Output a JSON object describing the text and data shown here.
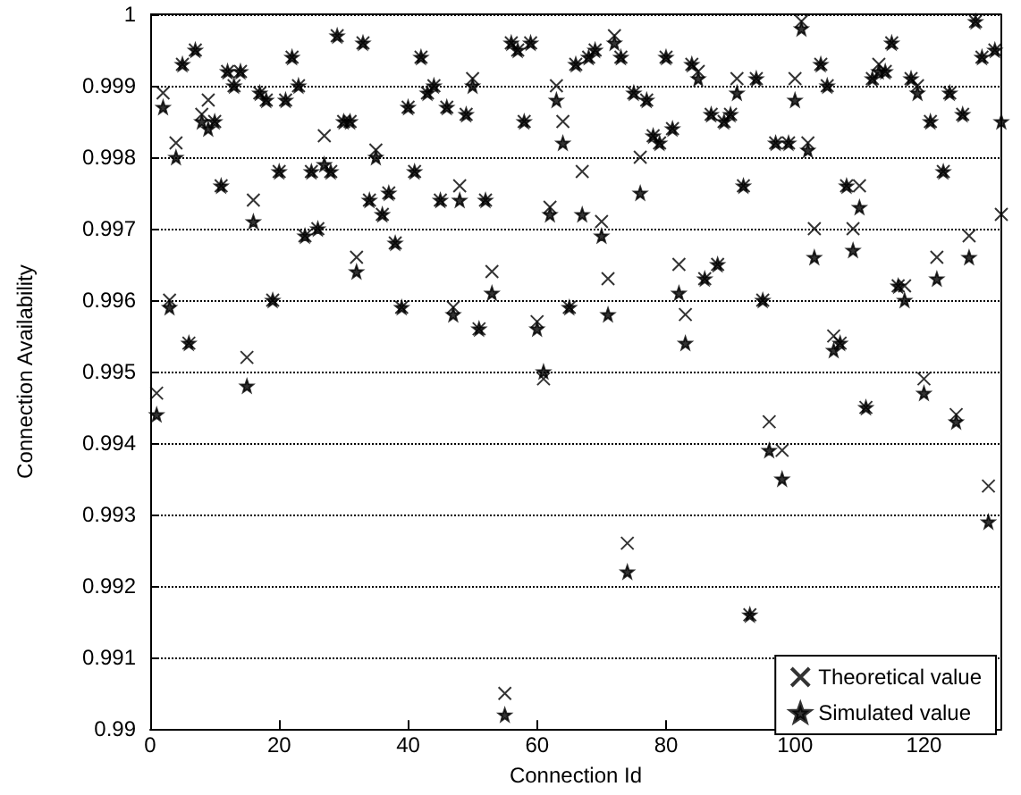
{
  "chart_data": {
    "type": "scatter",
    "xlabel": "Connection Id",
    "ylabel": "Connection Availability",
    "xlim": [
      0,
      132
    ],
    "xticks": [
      0,
      20,
      40,
      60,
      80,
      100,
      120
    ],
    "ylim": [
      0.99,
      1
    ],
    "yticks": [
      0.99,
      0.991,
      0.992,
      0.993,
      0.994,
      0.995,
      0.996,
      0.997,
      0.998,
      0.999,
      1
    ],
    "grid": "y",
    "legend": "bottom right",
    "series": [
      {
        "name": "Theoretical value",
        "color": "#000000",
        "marker": "cross",
        "x": [
          1,
          2,
          3,
          4,
          5,
          6,
          7,
          8,
          9,
          10,
          11,
          12,
          13,
          14,
          15,
          16,
          17,
          18,
          19,
          20,
          21,
          22,
          23,
          24,
          25,
          26,
          27,
          28,
          29,
          30,
          31,
          32,
          33,
          34,
          35,
          36,
          37,
          38,
          39,
          40,
          41,
          42,
          43,
          44,
          45,
          46,
          47,
          48,
          49,
          50,
          51,
          52,
          53,
          55,
          56,
          57,
          58,
          59,
          60,
          61,
          62,
          63,
          64,
          65,
          66,
          67,
          68,
          69,
          70,
          71,
          72,
          73,
          74,
          75,
          76,
          77,
          78,
          79,
          80,
          81,
          82,
          83,
          84,
          85,
          86,
          87,
          88,
          89,
          90,
          91,
          92,
          93,
          94,
          95,
          96,
          97,
          98,
          99,
          100,
          101,
          102,
          103,
          104,
          105,
          106,
          107,
          108,
          109,
          110,
          111,
          112,
          113,
          114,
          115,
          116,
          117,
          118,
          119,
          120,
          121,
          122,
          123,
          124,
          125,
          126,
          127,
          128,
          129,
          130,
          131,
          132
        ],
        "values": [
          0.9947,
          0.9989,
          0.996,
          0.9982,
          0.9993,
          0.9954,
          0.9995,
          0.9986,
          0.9988,
          0.9985,
          0.9976,
          0.9992,
          0.999,
          0.9992,
          0.9952,
          0.9974,
          0.9989,
          0.9988,
          0.996,
          0.9978,
          0.9988,
          0.9994,
          0.999,
          0.9969,
          0.9978,
          0.997,
          0.9983,
          0.9978,
          0.9997,
          0.9985,
          0.9985,
          0.9966,
          0.9996,
          0.9974,
          0.9981,
          0.9972,
          0.9975,
          0.9968,
          0.9959,
          0.9987,
          0.9978,
          0.9994,
          0.9989,
          0.999,
          0.9974,
          0.9987,
          0.9959,
          0.9976,
          0.9986,
          0.9991,
          0.9956,
          0.9974,
          0.9964,
          0.9905,
          0.9996,
          0.9995,
          0.9985,
          0.9996,
          0.9957,
          0.9949,
          0.9973,
          0.999,
          0.9985,
          0.9959,
          0.9993,
          0.9978,
          0.9994,
          0.9995,
          0.9971,
          0.9963,
          0.9997,
          0.9994,
          0.9926,
          0.9989,
          0.998,
          0.9988,
          0.9983,
          0.9982,
          0.9994,
          0.9984,
          0.9965,
          0.9958,
          0.9993,
          0.9992,
          0.9963,
          0.9986,
          0.9965,
          0.9985,
          0.9986,
          0.9991,
          0.9976,
          0.9916,
          0.9991,
          0.996,
          0.9943,
          0.9982,
          0.9939,
          0.9982,
          0.9991,
          0.9999,
          0.9982,
          0.997,
          0.9993,
          0.999,
          0.9955,
          0.9954,
          0.9976,
          0.997,
          0.9976,
          0.9945,
          0.9991,
          0.9993,
          0.9992,
          0.9996,
          0.9962,
          0.9962,
          0.9991,
          0.999,
          0.9949,
          0.9985,
          0.9966,
          0.9978,
          0.9989,
          0.9944,
          0.9986,
          0.9969,
          0.9999,
          0.9994,
          0.9934,
          0.9995,
          0.9972
        ]
      },
      {
        "name": "Simulated value",
        "color": "#000000",
        "marker": "star",
        "x": [
          1,
          2,
          3,
          4,
          5,
          6,
          7,
          8,
          9,
          10,
          11,
          12,
          13,
          14,
          15,
          16,
          17,
          18,
          19,
          20,
          21,
          22,
          23,
          24,
          25,
          26,
          27,
          28,
          29,
          30,
          31,
          32,
          33,
          34,
          35,
          36,
          37,
          38,
          39,
          40,
          41,
          42,
          43,
          44,
          45,
          46,
          47,
          48,
          49,
          50,
          51,
          52,
          53,
          55,
          56,
          57,
          58,
          59,
          60,
          61,
          62,
          63,
          64,
          65,
          66,
          67,
          68,
          69,
          70,
          71,
          72,
          73,
          74,
          75,
          76,
          77,
          78,
          79,
          80,
          81,
          82,
          83,
          84,
          85,
          86,
          87,
          88,
          89,
          90,
          91,
          92,
          93,
          94,
          95,
          96,
          97,
          98,
          99,
          100,
          101,
          102,
          103,
          104,
          105,
          106,
          107,
          108,
          109,
          110,
          111,
          112,
          113,
          114,
          115,
          116,
          117,
          118,
          119,
          120,
          121,
          122,
          123,
          124,
          125,
          126,
          127,
          128,
          129,
          130,
          131,
          132
        ],
        "values": [
          0.9944,
          0.9987,
          0.9959,
          0.998,
          0.9993,
          0.9954,
          0.9995,
          0.9985,
          0.9984,
          0.9985,
          0.9976,
          0.9992,
          0.999,
          0.9992,
          0.9948,
          0.9971,
          0.9989,
          0.9988,
          0.996,
          0.9978,
          0.9988,
          0.9994,
          0.999,
          0.9969,
          0.9978,
          0.997,
          0.9979,
          0.9978,
          0.9997,
          0.9985,
          0.9985,
          0.9964,
          0.9996,
          0.9974,
          0.998,
          0.9972,
          0.9975,
          0.9968,
          0.9959,
          0.9987,
          0.9978,
          0.9994,
          0.9989,
          0.999,
          0.9974,
          0.9987,
          0.9958,
          0.9974,
          0.9986,
          0.999,
          0.9956,
          0.9974,
          0.9961,
          0.9902,
          0.9996,
          0.9995,
          0.9985,
          0.9996,
          0.9956,
          0.995,
          0.9972,
          0.9988,
          0.9982,
          0.9959,
          0.9993,
          0.9972,
          0.9994,
          0.9995,
          0.9969,
          0.9958,
          0.9996,
          0.9994,
          0.9922,
          0.9989,
          0.9975,
          0.9988,
          0.9983,
          0.9982,
          0.9994,
          0.9984,
          0.9961,
          0.9954,
          0.9993,
          0.9991,
          0.9963,
          0.9986,
          0.9965,
          0.9985,
          0.9986,
          0.9989,
          0.9976,
          0.9916,
          0.9991,
          0.996,
          0.9939,
          0.9982,
          0.9935,
          0.9982,
          0.9988,
          0.9998,
          0.9981,
          0.9966,
          0.9993,
          0.999,
          0.9953,
          0.9954,
          0.9976,
          0.9967,
          0.9973,
          0.9945,
          0.9991,
          0.9992,
          0.9992,
          0.9996,
          0.9962,
          0.996,
          0.9991,
          0.9989,
          0.9947,
          0.9985,
          0.9963,
          0.9978,
          0.9989,
          0.9943,
          0.9986,
          0.9966,
          0.9999,
          0.9994,
          0.9929,
          0.9995,
          0.9985
        ]
      }
    ]
  }
}
